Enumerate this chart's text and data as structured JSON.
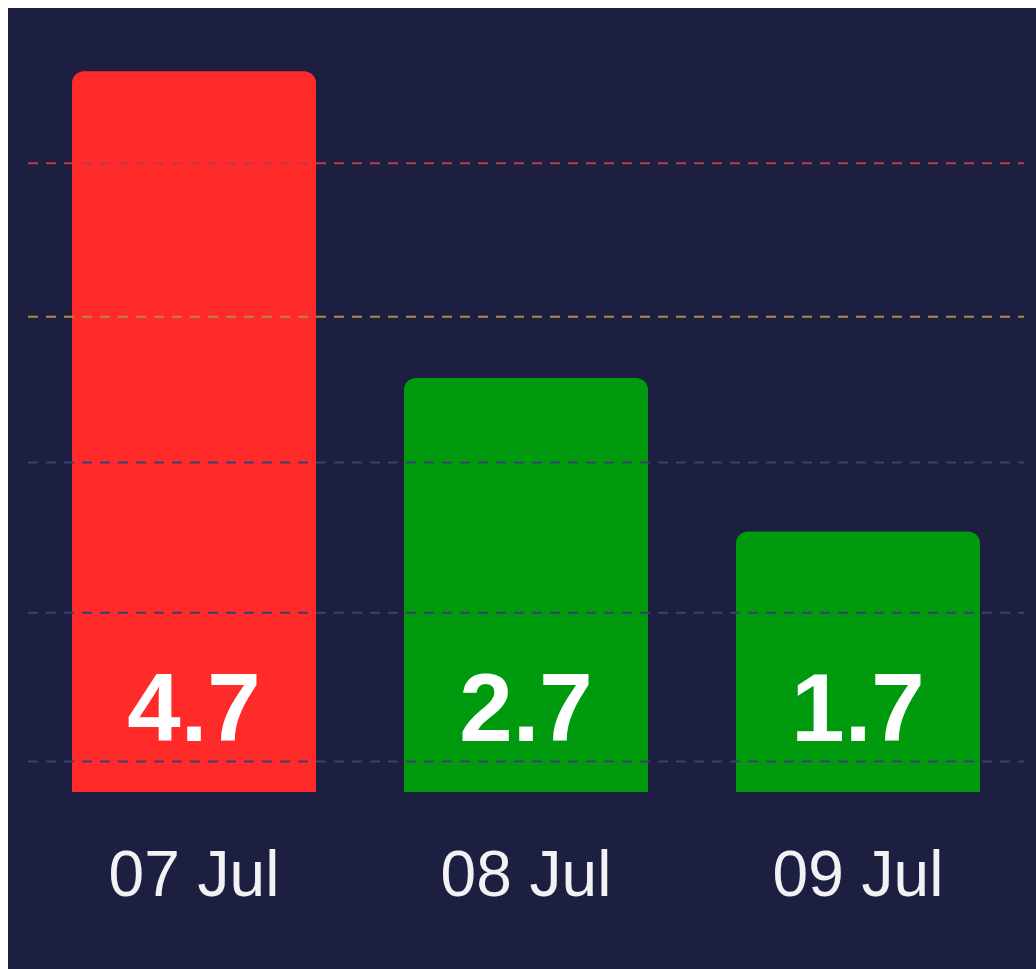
{
  "chart_data": {
    "type": "bar",
    "categories": [
      "07 Jul",
      "08 Jul",
      "09 Jul"
    ],
    "values": [
      4.7,
      2.7,
      1.7
    ],
    "colors": [
      "#ff2a2a",
      "#009a0f",
      "#009a0f"
    ],
    "data_labels": true,
    "grid": false,
    "tick_labels": "x",
    "ref_lines": [
      {
        "axis": "y",
        "value": 4.1,
        "color": "#c0394a",
        "line_style": "dashed"
      },
      {
        "axis": "y",
        "value": 3.1,
        "color": "#b08a40",
        "line_style": "dashed"
      },
      {
        "axis": "y",
        "value": 2.15,
        "color": "#3a4070",
        "line_style": "dashed"
      },
      {
        "axis": "y",
        "value": 1.17,
        "color": "#3a4070",
        "line_style": "dashed"
      },
      {
        "axis": "y",
        "value": 0.2,
        "color": "#3a4070",
        "line_style": "dashed"
      }
    ]
  }
}
